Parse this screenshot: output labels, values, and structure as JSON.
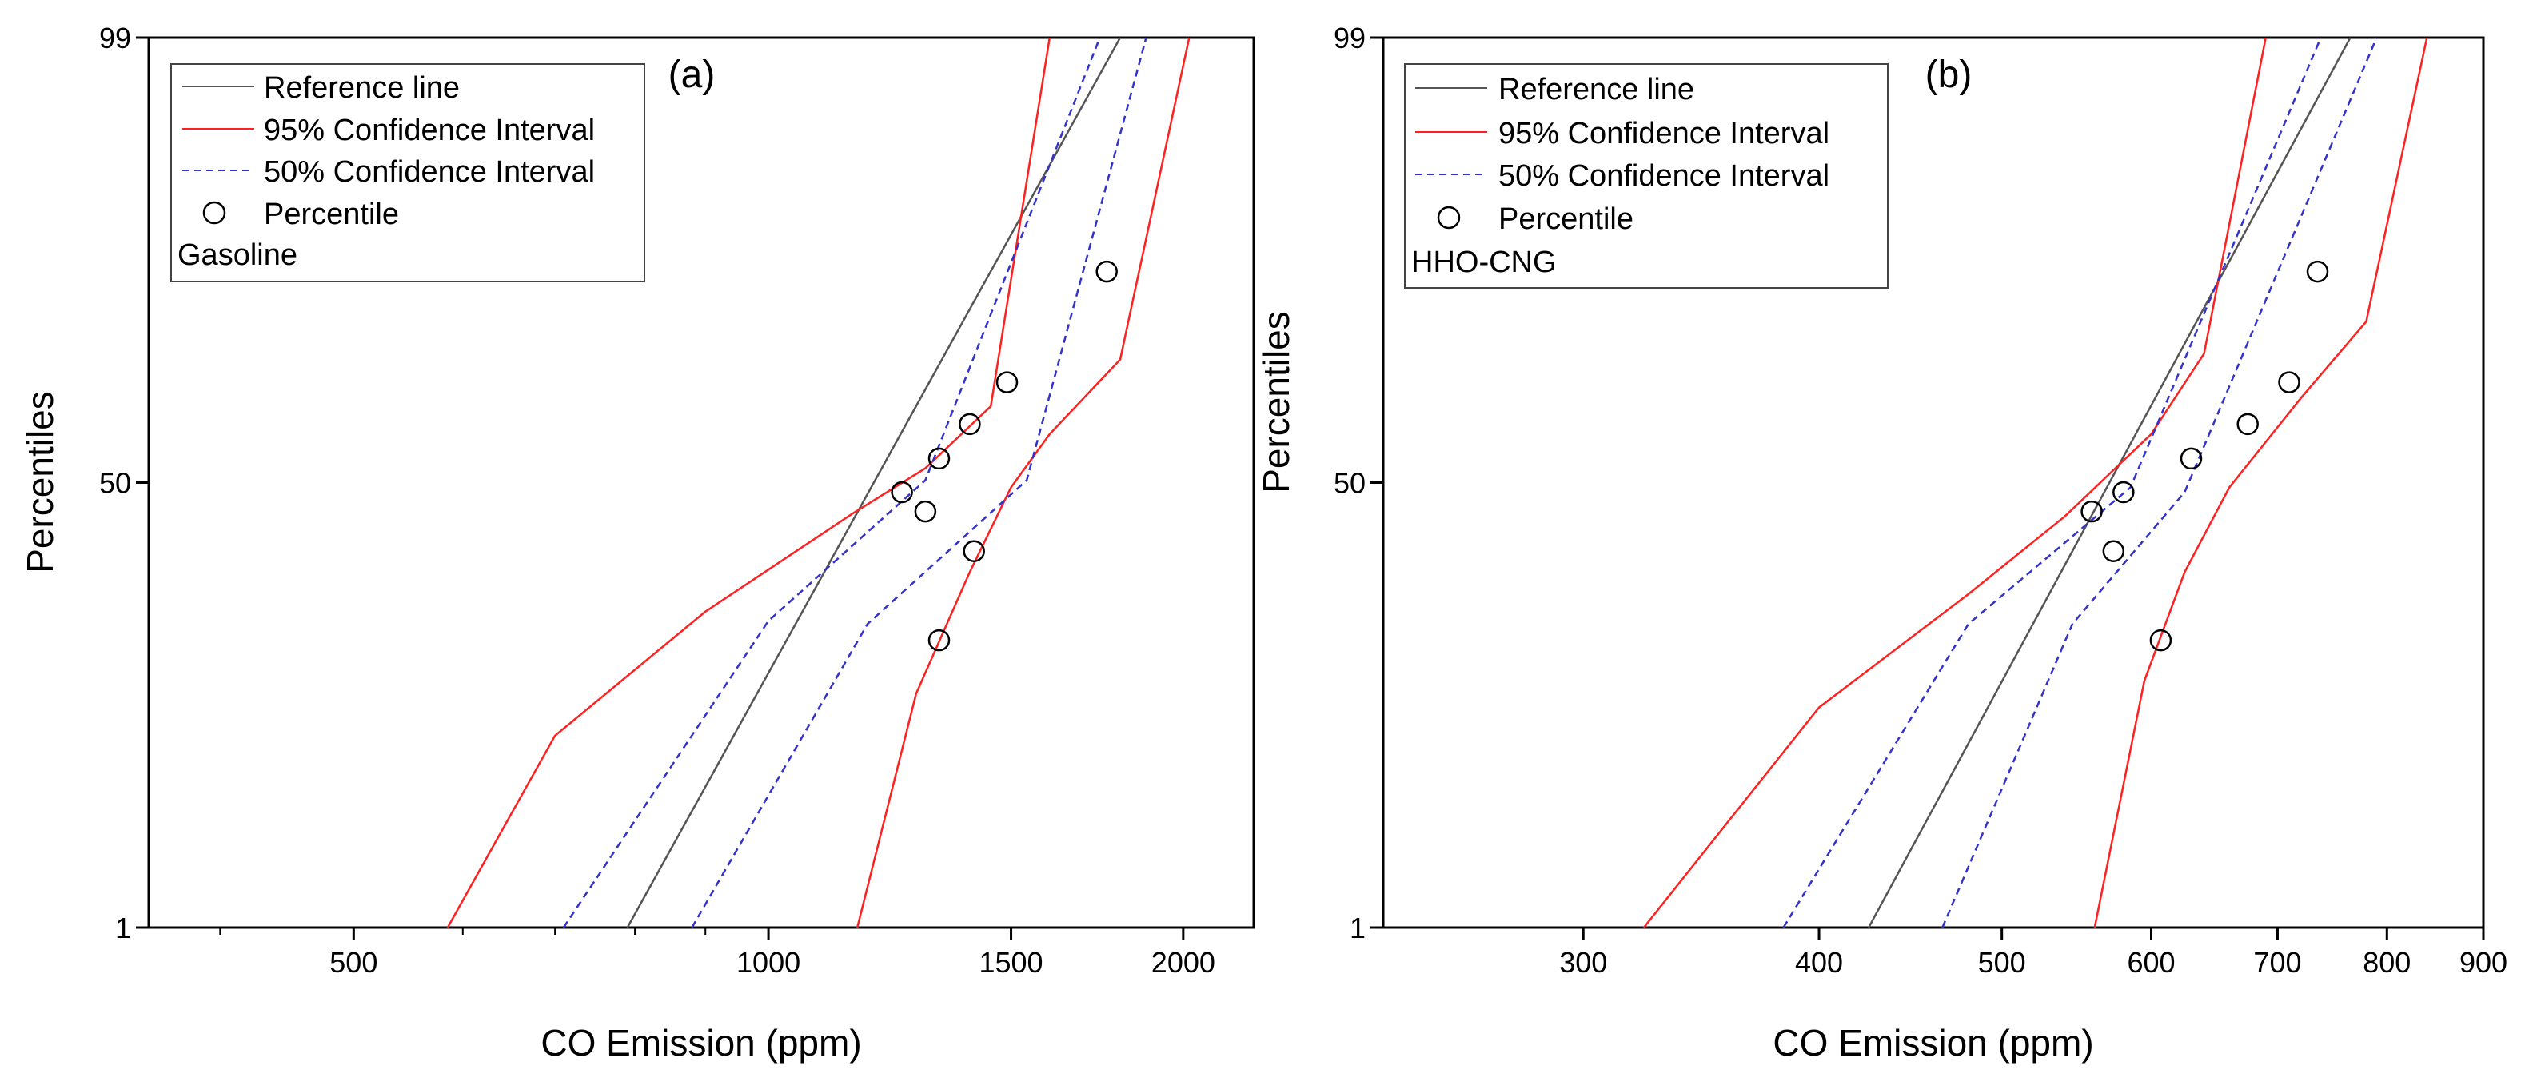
{
  "chart_data": [
    {
      "type": "scatter",
      "subtype": "probability-plot",
      "panel_label": "(a)",
      "xlabel": "CO Emission (ppm)",
      "ylabel": "Percentiles",
      "xscale": "log",
      "yscale": "normal-probability",
      "xlim": [
        355,
        2250
      ],
      "ylim": [
        1,
        99
      ],
      "x_ticks": [
        500,
        1000,
        1500,
        2000
      ],
      "x_tick_labels": [
        "500",
        "1000",
        "1500",
        "2000"
      ],
      "y_ticks": [
        1,
        50,
        99
      ],
      "y_tick_labels": [
        "1",
        "50",
        "99"
      ],
      "legend": {
        "position": "top-left",
        "entries": [
          "Reference line",
          "95% Confidence Interval",
          "50% Confidence Interval",
          "Percentile"
        ],
        "note": "Gasoline"
      },
      "series": [
        {
          "name": "Reference line",
          "kind": "line",
          "color": "#555555",
          "style": "solid",
          "points": [
            [
              790,
              1
            ],
            [
              1800,
              99
            ]
          ]
        },
        {
          "name": "95% Confidence Interval (lower)",
          "kind": "line",
          "color": "#ff2020",
          "style": "solid",
          "points": [
            [
              585,
              1
            ],
            [
              700,
              9.3
            ],
            [
              900,
              25
            ],
            [
              1150,
              43.5
            ],
            [
              1300,
              53
            ],
            [
              1450,
              65.5
            ],
            [
              1600,
              99
            ]
          ]
        },
        {
          "name": "95% Confidence Interval (upper)",
          "kind": "line",
          "color": "#ff2020",
          "style": "solid",
          "points": [
            [
              1160,
              1
            ],
            [
              1280,
              13.5
            ],
            [
              1400,
              32
            ],
            [
              1500,
              49
            ],
            [
              1600,
              60
            ],
            [
              1800,
              74
            ],
            [
              2020,
              99
            ]
          ]
        },
        {
          "name": "50% Confidence Interval (lower)",
          "kind": "line",
          "color": "#3333cc",
          "style": "dashed",
          "points": [
            [
              710,
              1
            ],
            [
              1000,
              23.5
            ],
            [
              1300,
              50.5
            ],
            [
              1740,
              99
            ]
          ]
        },
        {
          "name": "50% Confidence Interval (upper)",
          "kind": "line",
          "color": "#3333cc",
          "style": "dashed",
          "points": [
            [
              880,
              1
            ],
            [
              1180,
              23
            ],
            [
              1540,
              50.5
            ],
            [
              1880,
              99
            ]
          ]
        },
        {
          "name": "Percentile",
          "kind": "scatter",
          "color": "#000000",
          "points": [
            [
              1330,
              20.5
            ],
            [
              1410,
              36
            ],
            [
              1300,
              44
            ],
            [
              1250,
              48
            ],
            [
              1330,
              55
            ],
            [
              1400,
              62
            ],
            [
              1490,
              70
            ],
            [
              1760,
              86.5
            ]
          ]
        }
      ]
    },
    {
      "type": "scatter",
      "subtype": "probability-plot",
      "panel_label": "(b)",
      "xlabel": "CO Emission (ppm)",
      "ylabel": "Percentiles",
      "xscale": "log",
      "yscale": "normal-probability",
      "xlim": [
        235,
        900
      ],
      "ylim": [
        1,
        99
      ],
      "x_ticks": [
        300,
        400,
        500,
        600,
        700,
        800,
        900
      ],
      "x_tick_labels": [
        "300",
        "400",
        "500",
        "600",
        "700",
        "800",
        "900"
      ],
      "y_ticks": [
        1,
        50,
        99
      ],
      "y_tick_labels": [
        "1",
        "50",
        "99"
      ],
      "legend": {
        "position": "top-left",
        "entries": [
          "Reference line",
          "95% Confidence Interval",
          "50% Confidence Interval",
          "Percentile"
        ],
        "note": "HHO-CNG"
      },
      "series": [
        {
          "name": "Reference line",
          "kind": "line",
          "color": "#555555",
          "style": "solid",
          "points": [
            [
              425,
              1
            ],
            [
              765,
              99
            ]
          ]
        },
        {
          "name": "95% Confidence Interval (lower)",
          "kind": "line",
          "color": "#ff2020",
          "style": "solid",
          "points": [
            [
              323,
              1
            ],
            [
              400,
              12
            ],
            [
              480,
              28
            ],
            [
              540,
              43
            ],
            [
              600,
              60
            ],
            [
              640,
              75
            ],
            [
              690,
              99
            ]
          ]
        },
        {
          "name": "95% Confidence Interval (upper)",
          "kind": "line",
          "color": "#ff2020",
          "style": "solid",
          "points": [
            [
              560,
              1
            ],
            [
              595,
              15
            ],
            [
              625,
              32
            ],
            [
              660,
              49
            ],
            [
              720,
              67
            ],
            [
              780,
              80
            ],
            [
              840,
              99
            ]
          ]
        },
        {
          "name": "50% Confidence Interval (lower)",
          "kind": "line",
          "color": "#3333cc",
          "style": "dashed",
          "points": [
            [
              383,
              1
            ],
            [
              480,
              23
            ],
            [
              585,
              49
            ],
            [
              738,
              99
            ]
          ]
        },
        {
          "name": "50% Confidence Interval (upper)",
          "kind": "line",
          "color": "#3333cc",
          "style": "dashed",
          "points": [
            [
              465,
              1
            ],
            [
              545,
              23
            ],
            [
              625,
              48
            ],
            [
              790,
              99
            ]
          ]
        },
        {
          "name": "Percentile",
          "kind": "scatter",
          "color": "#000000",
          "points": [
            [
              607,
              20.5
            ],
            [
              573,
              36
            ],
            [
              558,
              44
            ],
            [
              580,
              48
            ],
            [
              630,
              55
            ],
            [
              675,
              62
            ],
            [
              710,
              70
            ],
            [
              735,
              86.5
            ]
          ]
        }
      ]
    }
  ]
}
